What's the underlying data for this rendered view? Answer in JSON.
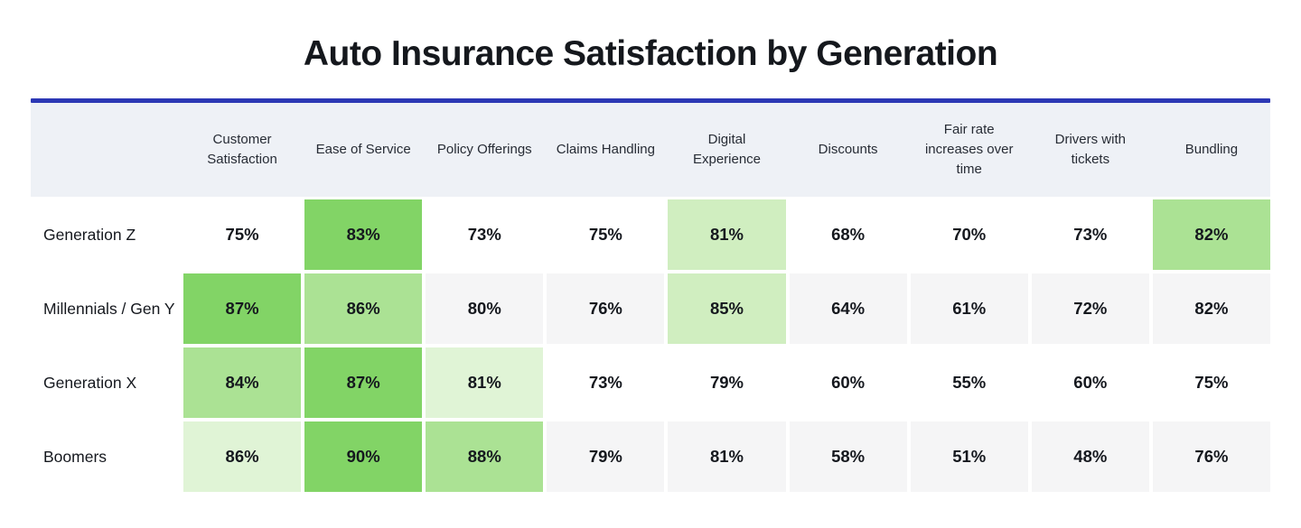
{
  "title": "Auto Insurance Satisfaction by Generation",
  "colors": {
    "accent_rule": "#2c38b5",
    "header_bg": "#eef1f6",
    "plain": "#ffffff",
    "stripe": "#f5f5f6",
    "tier1": "#82d466",
    "tier2": "#abe294",
    "tier3": "#d0eec0",
    "tier4": "#e0f4d6",
    "title_text": "#15181d",
    "header_text": "#272c35",
    "cell_text": "#15181e"
  },
  "chart_data": {
    "type": "heatmap",
    "title": "Auto Insurance Satisfaction by Generation",
    "unit": "%",
    "columns": [
      "Customer Satisfaction",
      "Ease of Service",
      "Policy Offerings",
      "Claims Handling",
      "Digital Experience",
      "Discounts",
      "Fair rate increases over time",
      "Drivers with tickets",
      "Bundling"
    ],
    "rows": [
      {
        "label": "Generation Z",
        "values": [
          75,
          83,
          73,
          75,
          81,
          68,
          70,
          73,
          82
        ],
        "cell_bg": [
          "plain",
          "tier1",
          "plain",
          "plain",
          "tier3",
          "plain",
          "plain",
          "plain",
          "tier2"
        ]
      },
      {
        "label": "Millennials / Gen Y",
        "values": [
          87,
          86,
          80,
          76,
          85,
          64,
          61,
          72,
          82
        ],
        "cell_bg": [
          "tier1",
          "tier2",
          "stripe",
          "stripe",
          "tier3",
          "stripe",
          "stripe",
          "stripe",
          "stripe"
        ]
      },
      {
        "label": "Generation X",
        "values": [
          84,
          87,
          81,
          73,
          79,
          60,
          55,
          60,
          75
        ],
        "cell_bg": [
          "tier2",
          "tier1",
          "tier4",
          "plain",
          "plain",
          "plain",
          "plain",
          "plain",
          "plain"
        ]
      },
      {
        "label": "Boomers",
        "values": [
          86,
          90,
          88,
          79,
          81,
          58,
          51,
          48,
          76
        ],
        "cell_bg": [
          "tier4",
          "tier1",
          "tier2",
          "stripe",
          "stripe",
          "stripe",
          "stripe",
          "stripe",
          "stripe"
        ]
      }
    ]
  }
}
